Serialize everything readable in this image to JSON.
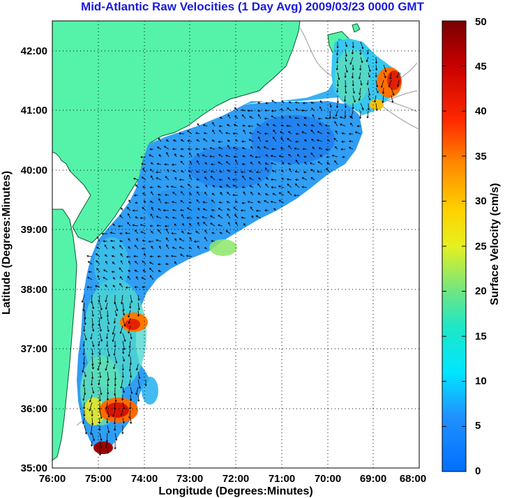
{
  "title": "Mid-Atlantic Raw Velocities (1 Day Avg) 2009/03/23 0000 GMT",
  "chart_data": {
    "type": "heatmap",
    "title": "Mid-Atlantic Raw Velocities (1 Day Avg) 2009/03/23 0000 GMT",
    "xlabel": "Longitude (Degrees:Minutes)",
    "ylabel": "Latitude (Degrees:Minutes)",
    "xlim": [
      -76,
      -68
    ],
    "ylim": [
      35,
      42.5
    ],
    "x_ticks": [
      "76:00",
      "75:00",
      "74:00",
      "73:00",
      "72:00",
      "71:00",
      "70:00",
      "69:00",
      "68:00"
    ],
    "y_ticks": [
      "35:00",
      "36:00",
      "37:00",
      "38:00",
      "39:00",
      "40:00",
      "41:00",
      "42:00"
    ],
    "grid": "dotted",
    "colorbar": {
      "label": "Surface Velocity (cm/s)",
      "range": [
        0,
        50
      ],
      "ticks": [
        "0",
        "5",
        "10",
        "15",
        "20",
        "25",
        "30",
        "35",
        "40",
        "45",
        "50"
      ],
      "colormap": "jet",
      "position": "right"
    },
    "velocity_field": {
      "typical_range_cm_s": [
        3,
        20
      ],
      "high_speed_regions": [
        {
          "lon": -74.5,
          "lat": 37.4,
          "speed": 40
        },
        {
          "lon": -74.9,
          "lat": 35.9,
          "speed": 45
        },
        {
          "lon": -75.0,
          "lat": 35.25,
          "speed": 50
        },
        {
          "lon": -68.9,
          "lat": 41.3,
          "speed": 45
        }
      ]
    }
  },
  "colors": {
    "land": "#55f2aa",
    "title": "#1a1adf",
    "bathymetry": "#a9a9a9",
    "grid": "#000000"
  }
}
